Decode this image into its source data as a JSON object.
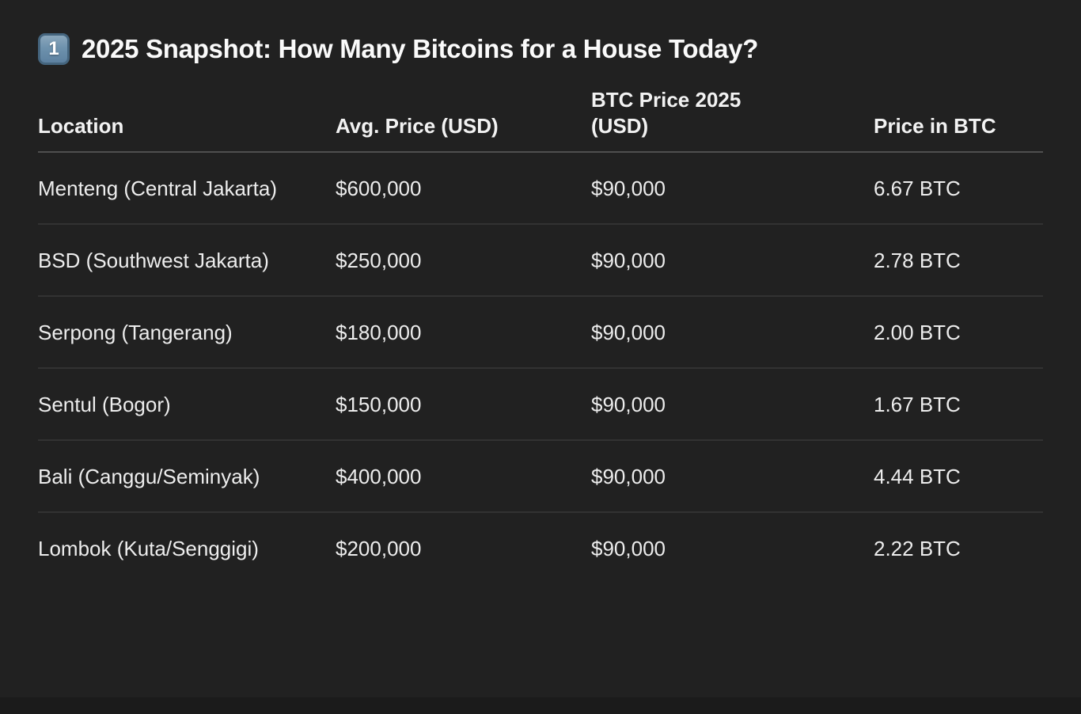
{
  "theme": {
    "background": "#212121",
    "text_color": "#ededed",
    "title_color": "#fafafa",
    "header_divider_color": "#4f4f4f",
    "row_divider_color": "#323232",
    "keycap_color": "#6e92ad"
  },
  "header": {
    "badge_glyph": "1",
    "title": "2025 Snapshot: How Many Bitcoins for a House Today?"
  },
  "table": {
    "columns": [
      "Location",
      "Avg. Price (USD)",
      "BTC Price 2025 (USD)",
      "Price in BTC"
    ],
    "rows": [
      {
        "location": "Menteng (Central Jakarta)",
        "avg_price_usd": "$600,000",
        "btc_price_2025_usd": "$90,000",
        "price_in_btc": "6.67 BTC"
      },
      {
        "location": "BSD (Southwest Jakarta)",
        "avg_price_usd": "$250,000",
        "btc_price_2025_usd": "$90,000",
        "price_in_btc": "2.78 BTC"
      },
      {
        "location": "Serpong (Tangerang)",
        "avg_price_usd": "$180,000",
        "btc_price_2025_usd": "$90,000",
        "price_in_btc": "2.00 BTC"
      },
      {
        "location": "Sentul (Bogor)",
        "avg_price_usd": "$150,000",
        "btc_price_2025_usd": "$90,000",
        "price_in_btc": "1.67 BTC"
      },
      {
        "location": "Bali (Canggu/Seminyak)",
        "avg_price_usd": "$400,000",
        "btc_price_2025_usd": "$90,000",
        "price_in_btc": "4.44 BTC"
      },
      {
        "location": "Lombok (Kuta/Senggigi)",
        "avg_price_usd": "$200,000",
        "btc_price_2025_usd": "$90,000",
        "price_in_btc": "2.22 BTC"
      }
    ]
  }
}
